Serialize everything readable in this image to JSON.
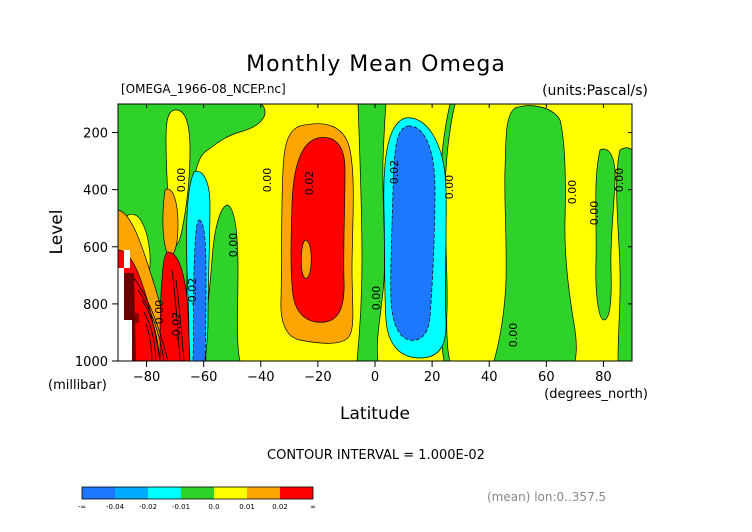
{
  "chart_data": {
    "type": "contour",
    "title": "Monthly Mean Omega",
    "file_label": "[OMEGA_1966-08_NCEP.nc]",
    "units_label": "(units:Pascal/s)",
    "xlabel": "Latitude",
    "x_unit_label": "(degrees_north)",
    "ylabel": "Level",
    "y_unit_label": "(millibar)",
    "x_range": [
      -90,
      90
    ],
    "y_range": [
      1000,
      100
    ],
    "x_ticks": [
      -80,
      -60,
      -40,
      -20,
      0,
      20,
      40,
      60,
      80
    ],
    "y_ticks": [
      200,
      400,
      600,
      800,
      1000
    ],
    "contour_interval_text": "CONTOUR INTERVAL = 1.000E-02",
    "mean_text": "(mean) lon:0..357.5",
    "contour_labels": [
      "0.00",
      "0.00",
      "0.02",
      "0.00",
      "0.02",
      "0.00",
      "0.00",
      "0.00",
      "0.00",
      "0.00",
      "0.00",
      "0.00",
      "-0.02",
      "-0.02"
    ],
    "colorbar": {
      "colors": [
        "#1e78ff",
        "#00aaff",
        "#00ffff",
        "#2fd228",
        "#ffff00",
        "#ffa500",
        "#ff0000"
      ],
      "labels": [
        "-∞",
        "-0.04",
        "-0.02",
        "-0.01",
        "0.0",
        "0.01",
        "0.02",
        "∞"
      ]
    },
    "regions": [
      {
        "name": "neg-light",
        "lat": [
          -66,
          -59
        ],
        "lev": [
          330,
          1000
        ],
        "value": "-0.01 to 0"
      },
      {
        "name": "neg-medium",
        "lat": [
          -63,
          -60
        ],
        "lev": [
          560,
          1000
        ],
        "value": "-0.02 to -0.01"
      },
      {
        "name": "pos-orange-sh",
        "lat": [
          -31,
          -11
        ],
        "lev": [
          130,
          930
        ],
        "value": "0.01 to 0.02"
      },
      {
        "name": "pos-red-sh",
        "lat": [
          -28,
          -13
        ],
        "lev": [
          190,
          850
        ],
        "value": "> 0.02"
      },
      {
        "name": "neg-light-tropics",
        "lat": [
          6,
          26
        ],
        "lev": [
          120,
          970
        ],
        "value": "-0.01 to 0"
      },
      {
        "name": "neg-medium-tropics",
        "lat": [
          7,
          22
        ],
        "lev": [
          170,
          900
        ],
        "value": "-0.02 to -0.01"
      },
      {
        "name": "pos-red-antarctic",
        "lat": [
          -78,
          -67
        ],
        "lev": [
          660,
          1000
        ],
        "value": "> 0.02"
      }
    ]
  }
}
